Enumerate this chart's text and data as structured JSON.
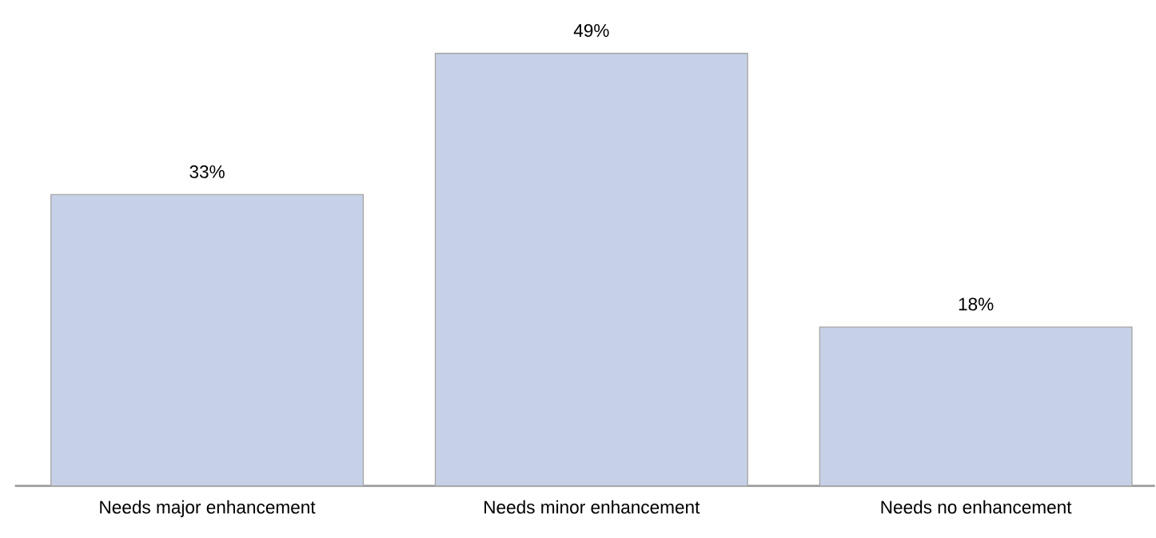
{
  "chart_data": {
    "type": "bar",
    "categories": [
      "Needs major enhancement",
      "Needs minor enhancement",
      "Needs no enhancement"
    ],
    "values": [
      33,
      49,
      18
    ],
    "value_labels": [
      "33%",
      "49%",
      "18%"
    ],
    "color": "#c6d1e7"
  }
}
